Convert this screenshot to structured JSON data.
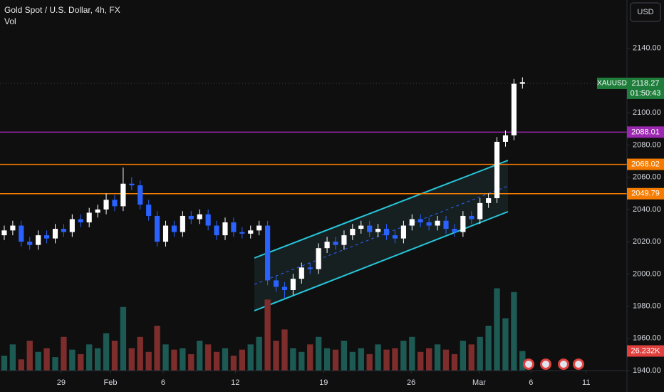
{
  "header": {
    "title": "Gold Spot / U.S. Dollar, 4h, FX",
    "indicator": "Vol",
    "currency": "USD"
  },
  "chart_data": {
    "type": "candlestick",
    "symbol": "XAUUSD",
    "open": [
      2024,
      2027,
      2030,
      2020,
      2018,
      2024,
      2022,
      2028,
      2026,
      2034,
      2032,
      2038,
      2040,
      2046,
      2042,
      2056,
      2055,
      2043,
      2036,
      2020,
      2030,
      2026,
      2036,
      2034,
      2037,
      2030,
      2024,
      2032,
      2026,
      2025,
      2027,
      2030,
      1996,
      1992,
      1990,
      1997,
      2004,
      2003,
      2016,
      2020,
      2018,
      2024,
      2028,
      2030,
      2026,
      2028,
      2024,
      2022,
      2030,
      2034,
      2032,
      2030,
      2033,
      2028,
      2026,
      2036,
      2034,
      2044,
      2047,
      2082,
      2086,
      2118
    ],
    "high": [
      2030,
      2033,
      2033,
      2023,
      2027,
      2027,
      2031,
      2031,
      2037,
      2037,
      2041,
      2043,
      2050,
      2049,
      2066,
      2060,
      2058,
      2046,
      2039,
      2033,
      2033,
      2039,
      2039,
      2040,
      2040,
      2033,
      2035,
      2035,
      2029,
      2030,
      2033,
      2033,
      1999,
      1995,
      2000,
      2007,
      2007,
      2019,
      2023,
      2023,
      2027,
      2031,
      2033,
      2033,
      2031,
      2031,
      2027,
      2033,
      2037,
      2037,
      2035,
      2036,
      2036,
      2031,
      2039,
      2039,
      2047,
      2050,
      2085,
      2089,
      2121,
      2122
    ],
    "low": [
      2021,
      2024,
      2017,
      2015,
      2015,
      2019,
      2019,
      2023,
      2023,
      2029,
      2029,
      2035,
      2037,
      2039,
      2039,
      2052,
      2040,
      2033,
      2017,
      2017,
      2023,
      2023,
      2031,
      2031,
      2027,
      2021,
      2021,
      2023,
      2022,
      2022,
      2024,
      1993,
      1989,
      1985,
      1987,
      1994,
      2000,
      2000,
      2013,
      2015,
      2015,
      2021,
      2025,
      2023,
      2023,
      2021,
      2019,
      2019,
      2027,
      2029,
      2027,
      2027,
      2025,
      2023,
      2023,
      2031,
      2031,
      2041,
      2044,
      2079,
      2083,
      2115
    ],
    "close": [
      2027,
      2030,
      2020,
      2018,
      2024,
      2022,
      2028,
      2026,
      2034,
      2032,
      2038,
      2040,
      2046,
      2042,
      2056,
      2055,
      2043,
      2036,
      2020,
      2030,
      2026,
      2036,
      2034,
      2037,
      2030,
      2024,
      2032,
      2026,
      2025,
      2027,
      2030,
      1996,
      1992,
      1990,
      1997,
      2004,
      2003,
      2016,
      2020,
      2018,
      2024,
      2028,
      2030,
      2026,
      2028,
      2024,
      2022,
      2030,
      2034,
      2032,
      2030,
      2033,
      2028,
      2026,
      2036,
      2034,
      2044,
      2047,
      2082,
      2086,
      2118,
      2119
    ],
    "volume": [
      20,
      35,
      15,
      40,
      25,
      30,
      18,
      45,
      28,
      22,
      35,
      30,
      50,
      40,
      85,
      30,
      45,
      25,
      60,
      35,
      28,
      30,
      22,
      40,
      35,
      25,
      30,
      20,
      28,
      35,
      45,
      95,
      40,
      55,
      30,
      25,
      35,
      45,
      30,
      28,
      40,
      25,
      30,
      22,
      35,
      28,
      30,
      40,
      45,
      25,
      30,
      35,
      28,
      22,
      40,
      35,
      45,
      60,
      110,
      70,
      105,
      26.232
    ],
    "ylim": [
      1940,
      2170
    ],
    "yticks": [
      {
        "value": 2140,
        "label": "2140.00"
      },
      {
        "value": 2100,
        "label": "2100.00"
      },
      {
        "value": 2080,
        "label": "2080.00"
      },
      {
        "value": 2060,
        "label": "2060.00"
      },
      {
        "value": 2040,
        "label": "2040.00"
      },
      {
        "value": 2020,
        "label": "2020.00"
      },
      {
        "value": 2000,
        "label": "2000.00"
      },
      {
        "value": 1980,
        "label": "1980.00"
      },
      {
        "value": 1960,
        "label": "1960.00"
      },
      {
        "value": 1940,
        "label": "1940.00"
      }
    ],
    "xlim": [
      -0.5,
      73.3
    ],
    "xticks": [
      {
        "value": 6.7,
        "label": "29"
      },
      {
        "value": 12.5,
        "label": "Feb"
      },
      {
        "value": 18.7,
        "label": "6"
      },
      {
        "value": 27.2,
        "label": "12"
      },
      {
        "value": 37.6,
        "label": "19"
      },
      {
        "value": 47.9,
        "label": "26"
      },
      {
        "value": 55.9,
        "label": "Mar"
      },
      {
        "value": 62,
        "label": "6"
      },
      {
        "value": 68.5,
        "label": "11"
      }
    ],
    "volume_ylim": [
      0,
      200
    ],
    "levels": [
      {
        "value": 2088.01,
        "color": "#9c27b0"
      },
      {
        "value": 2068.02,
        "color": "#f57c00"
      },
      {
        "value": 2049.79,
        "color": "#f57c00"
      }
    ],
    "last_price": 2118.27,
    "last_price_color": "#1e7d3a",
    "countdown": "01:50:43",
    "last_volume": {
      "value": 26.232,
      "label": "26.232K"
    },
    "last_volume_color": "#e0413e",
    "up_color": "#ffffff",
    "down_color": "#2962ff",
    "volume_up_color": "#1d5a54",
    "volume_down_color": "#7c2d2c"
  }
}
